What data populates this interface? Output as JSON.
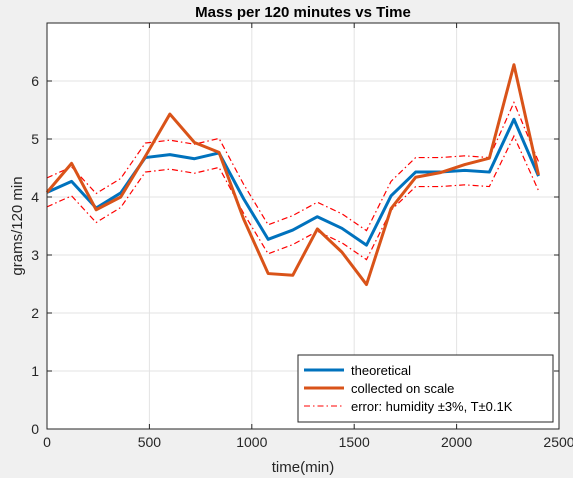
{
  "chart_data": {
    "type": "line",
    "title": "Mass per 120 minutes vs Time",
    "xlabel": "time(min)",
    "ylabel": "grams/120 min",
    "xlim": [
      0,
      2500
    ],
    "ylim": [
      0,
      7
    ],
    "xticks": [
      0,
      500,
      1000,
      1500,
      2000,
      2500
    ],
    "yticks": [
      0,
      1,
      2,
      3,
      4,
      5,
      6
    ],
    "grid": true,
    "legend_position": "bottom-right",
    "x": [
      0,
      120,
      240,
      360,
      480,
      600,
      720,
      840,
      960,
      1080,
      1200,
      1320,
      1440,
      1560,
      1680,
      1800,
      1920,
      2040,
      2160,
      2280,
      2400
    ],
    "series": [
      {
        "name": "theoretical",
        "color": "#0072BD",
        "style": "solid",
        "values": [
          4.08,
          4.27,
          3.81,
          4.07,
          4.68,
          4.73,
          4.66,
          4.76,
          3.97,
          3.27,
          3.43,
          3.66,
          3.46,
          3.17,
          4.02,
          4.43,
          4.43,
          4.46,
          4.43,
          5.34,
          4.36
        ]
      },
      {
        "name": "collected on scale",
        "color": "#D95319",
        "style": "solid",
        "values": [
          4.08,
          4.58,
          3.78,
          4.0,
          4.7,
          5.43,
          4.94,
          4.77,
          3.62,
          2.68,
          2.65,
          3.45,
          3.05,
          2.49,
          3.8,
          4.34,
          4.42,
          4.56,
          4.67,
          6.28,
          4.38
        ]
      },
      {
        "name": "error: humidity ±3%, T±0.1K",
        "color": "#FF0000",
        "style": "dashdot",
        "values_upper": [
          4.33,
          4.52,
          4.06,
          4.32,
          4.93,
          4.98,
          4.91,
          5.01,
          4.22,
          3.52,
          3.68,
          3.91,
          3.71,
          3.42,
          4.27,
          4.68,
          4.68,
          4.71,
          4.68,
          5.63,
          4.61
        ],
        "values_lower": [
          3.83,
          4.02,
          3.56,
          3.82,
          4.43,
          4.48,
          4.41,
          4.51,
          3.72,
          3.02,
          3.18,
          3.41,
          3.21,
          2.92,
          3.77,
          4.18,
          4.18,
          4.21,
          4.18,
          5.05,
          4.11
        ]
      }
    ]
  }
}
